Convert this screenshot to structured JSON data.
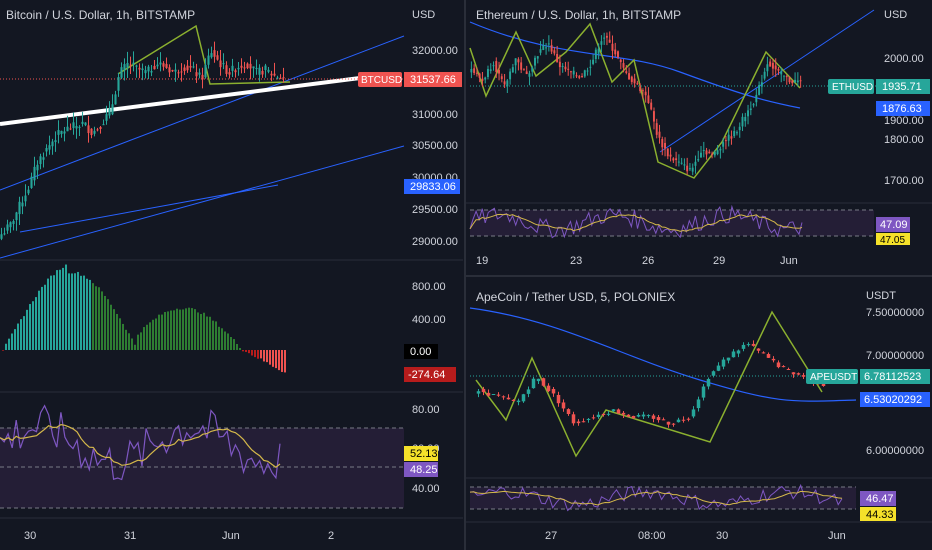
{
  "colors": {
    "background": "#131722",
    "grid": "#1e2230",
    "text": "#d1d4dc",
    "up": "#26a69a",
    "down": "#ef5350",
    "blue": "#2962ff",
    "zigzag": "#8bb02f",
    "rsi": "#7e57c2",
    "rsi_ma": "#d4b84a",
    "rsi_band": "#2a2240"
  },
  "panels": {
    "btc": {
      "title": "Bitcoin / U.S. Dollar, 1h, BITSTAMP",
      "currency": "USD",
      "price_ticks": [
        "32000.00",
        "31500.00",
        "31000.00",
        "30500.00",
        "30000.00",
        "29500.00",
        "29000.00"
      ],
      "price_badge": {
        "symbol": "BTCUSD",
        "value": "31537.66",
        "color": "#ef5350"
      },
      "line_badge": {
        "value": "29833.06",
        "color": "#2962ff"
      },
      "macd_ticks": [
        "800.00",
        "400.00"
      ],
      "macd_badges": [
        {
          "value": "0.00",
          "color": "#000000"
        },
        {
          "value": "-274.64",
          "color": "#b71c1c"
        }
      ],
      "rsi_ticks": [
        "80.00",
        "60.00",
        "40.00"
      ],
      "rsi_badges": [
        {
          "value": "52.13",
          "color": "#f5e12a"
        },
        {
          "value": "48.25",
          "color": "#7e57c2"
        }
      ],
      "time_labels": [
        "30",
        "31",
        "Jun",
        "2"
      ]
    },
    "eth": {
      "title": "Ethereum / U.S. Dollar, 1h, BITSTAMP",
      "currency": "USD",
      "price_ticks": [
        "2000.00",
        "1900.00",
        "1800.00",
        "1700.00"
      ],
      "price_badge": {
        "symbol": "ETHUSD",
        "value": "1935.71",
        "color": "#26a69a"
      },
      "line_badge": {
        "value": "1876.63",
        "color": "#2962ff"
      },
      "rsi_badges": [
        {
          "value": "47.09",
          "color": "#7e57c2"
        },
        {
          "value": "47.05",
          "color": "#f5e12a"
        }
      ],
      "time_labels": [
        "19",
        "23",
        "26",
        "29",
        "Jun"
      ]
    },
    "ape": {
      "title": "ApeCoin / Tether USD, 5, POLONIEX",
      "currency": "USDT",
      "price_ticks": [
        "7.50000000",
        "7.00000000",
        "6.00000000"
      ],
      "price_badge": {
        "symbol": "APEUSDT",
        "value": "6.78112523",
        "color": "#26a69a"
      },
      "line_badge": {
        "value": "6.53020292",
        "color": "#2962ff"
      },
      "rsi_badges": [
        {
          "value": "46.47",
          "color": "#7e57c2"
        },
        {
          "value": "44.33",
          "color": "#f5e12a"
        }
      ],
      "time_labels": [
        "27",
        "08:00",
        "30",
        "Jun"
      ]
    }
  },
  "chart_data": [
    {
      "type": "candlestick",
      "title": "Bitcoin / U.S. Dollar, 1h, BITSTAMP",
      "ylim": [
        28800,
        32400
      ],
      "x": [
        "30",
        "31",
        "Jun",
        "2"
      ],
      "close_path": [
        29050,
        29200,
        29500,
        29800,
        30200,
        30400,
        30600,
        30700,
        30750,
        30800,
        30650,
        30800,
        31000,
        31600,
        31750,
        31650,
        31600,
        31750,
        31700,
        31600,
        31700,
        31650,
        31500,
        31950,
        31750,
        31600,
        31700,
        31750,
        31600,
        31650,
        31550,
        31537.66
      ],
      "indicators": {
        "macd_histogram_ylim": [
          -400,
          1000
        ],
        "rsi_ylim": [
          20,
          90
        ]
      }
    },
    {
      "type": "candlestick",
      "title": "Ethereum / U.S. Dollar, 1h, BITSTAMP",
      "ylim": [
        1650,
        2100
      ],
      "x": [
        "19",
        "23",
        "26",
        "29",
        "Jun"
      ],
      "close_path": [
        1970,
        1940,
        1990,
        1920,
        2000,
        1950,
        2010,
        2040,
        1980,
        1960,
        1950,
        1990,
        2060,
        2020,
        1960,
        1930,
        1900,
        1790,
        1740,
        1720,
        1700,
        1760,
        1740,
        1780,
        1800,
        1850,
        1900,
        1990,
        1960,
        1940,
        1935.71
      ]
    },
    {
      "type": "candlestick",
      "title": "ApeCoin / Tether USD, 5, POLONIEX",
      "ylim": [
        5.8,
        7.6
      ],
      "x": [
        "27",
        "08:00",
        "30",
        "Jun"
      ],
      "close_path": [
        6.7,
        6.6,
        6.5,
        6.9,
        6.6,
        6.2,
        6.3,
        6.4,
        6.3,
        6.3,
        6.2,
        6.3,
        6.9,
        7.2,
        7.4,
        7.2,
        7.0,
        6.9,
        6.78112523
      ]
    }
  ]
}
